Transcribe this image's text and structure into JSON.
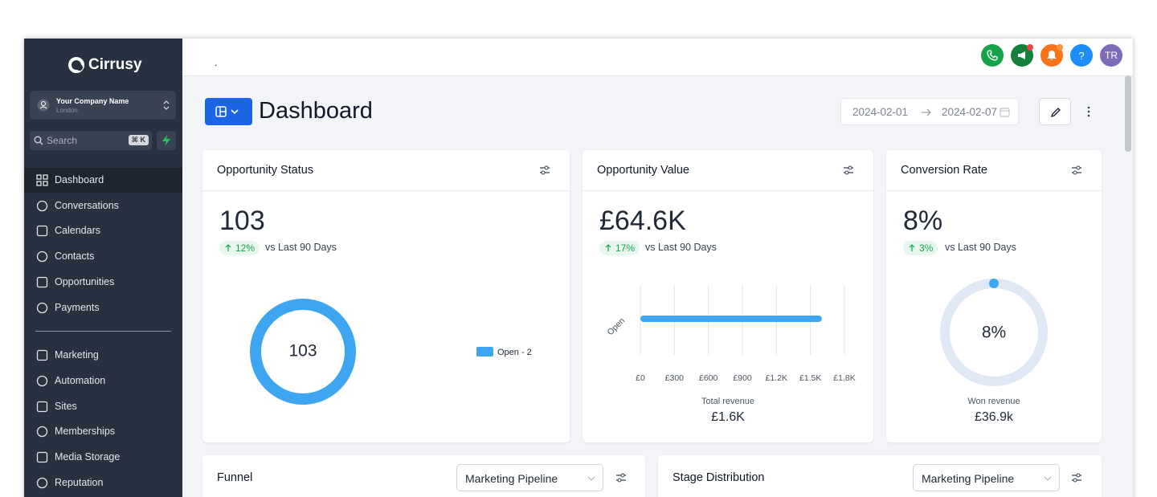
{
  "sidebar": {
    "brand": "Cirrusy",
    "company": {
      "name": "Your Company Name",
      "location": "London"
    },
    "search": {
      "placeholder": "Search",
      "shortcut": "⌘ K"
    },
    "nav": [
      "Dashboard",
      "Conversations",
      "Calendars",
      "Contacts",
      "Opportunities",
      "Payments",
      "Marketing",
      "Automation",
      "Sites",
      "Memberships",
      "Media Storage",
      "Reputation"
    ]
  },
  "topbar": {
    "text": ".",
    "help": "?",
    "avatar": "TR"
  },
  "page": {
    "title": "Dashboard",
    "date_range": {
      "start": "2024-02-01",
      "end": "2024-02-07"
    }
  },
  "cards": [
    {
      "title": "Opportunity Status",
      "value": "103",
      "change": "12%",
      "comparison": "vs Last 90 Days",
      "donut": {
        "center": "103",
        "legend": "Open - 2"
      }
    },
    {
      "title": "Opportunity Value",
      "value": "£64.6K",
      "change": "17%",
      "comparison": "vs Last 90 Days",
      "chart_data": {
        "type": "bar",
        "orientation": "horizontal",
        "categories": [
          "Open"
        ],
        "values": [
          1600
        ],
        "color": "#3ea6f1",
        "xlim": [
          0,
          1800
        ],
        "xticks": [
          {
            "value": 0,
            "label": "£0"
          },
          {
            "value": 300,
            "label": "£300"
          },
          {
            "value": 600,
            "label": "£600"
          },
          {
            "value": 900,
            "label": "£900"
          },
          {
            "value": 1200,
            "label": "£1.2K"
          },
          {
            "value": 1500,
            "label": "£1.5K"
          },
          {
            "value": 1800,
            "label": "£1.8K"
          }
        ],
        "grid": true
      },
      "footer": {
        "label": "Total revenue",
        "value": "£1.6K"
      }
    },
    {
      "title": "Conversion Rate",
      "value": "8%",
      "change": "3%",
      "comparison": "vs Last 90 Days",
      "gauge": {
        "center": "8%"
      },
      "footer": {
        "label": "Won revenue",
        "value": "£36.9k"
      }
    }
  ],
  "panels": [
    {
      "title": "Funnel",
      "select": "Marketing Pipeline"
    },
    {
      "title": "Stage Distribution",
      "select": "Marketing Pipeline"
    }
  ]
}
